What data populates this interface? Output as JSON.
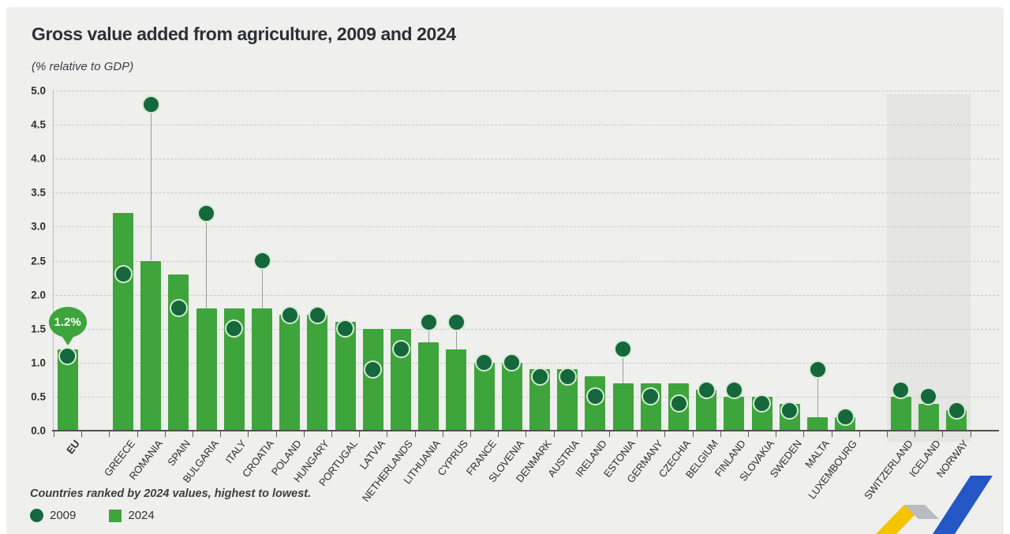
{
  "header": {
    "title": "Gross value added from agriculture, 2009 and 2024",
    "subtitle": "(% relative to GDP)"
  },
  "chart_data": {
    "type": "bar",
    "title": "Gross value added from agriculture, 2009 and 2024",
    "subtitle": "(% relative to GDP)",
    "ylim": [
      0,
      5.0
    ],
    "ytick_step": 0.5,
    "grid": "dashed-horizontal",
    "categories": [
      "EU",
      "GREECE",
      "ROMANIA",
      "SPAIN",
      "BULGARIA",
      "ITALY",
      "CROATIA",
      "POLAND",
      "HUNGARY",
      "PORTUGAL",
      "LATVIA",
      "NETHERLANDS",
      "LITHUANIA",
      "CYPRUS",
      "FRANCE",
      "SLOVENIA",
      "DENMARK",
      "AUSTRIA",
      "IRELAND",
      "ESTONIA",
      "GERMANY",
      "CZECHIA",
      "BELGIUM",
      "FINLAND",
      "SLOVAKIA",
      "SWEDEN",
      "MALTA",
      "LUXEMBOURG",
      "SWITZERLAND",
      "ICELAND",
      "NORWAY"
    ],
    "series": [
      {
        "name": "2009",
        "marker": "dot",
        "values": [
          1.1,
          2.3,
          4.8,
          1.8,
          3.2,
          1.5,
          2.5,
          1.7,
          1.7,
          1.5,
          0.9,
          1.2,
          1.6,
          1.6,
          1.0,
          1.0,
          0.8,
          0.8,
          0.5,
          1.2,
          0.5,
          0.4,
          0.6,
          0.6,
          0.4,
          0.3,
          0.9,
          0.2,
          0.6,
          0.5,
          0.3
        ]
      },
      {
        "name": "2024",
        "marker": "bar",
        "values": [
          1.2,
          3.2,
          2.5,
          2.3,
          1.8,
          1.8,
          1.8,
          1.7,
          1.7,
          1.6,
          1.5,
          1.5,
          1.3,
          1.2,
          1.0,
          1.0,
          0.9,
          0.9,
          0.8,
          0.7,
          0.7,
          0.7,
          0.6,
          0.5,
          0.5,
          0.4,
          0.2,
          0.2,
          0.5,
          0.4,
          0.3
        ]
      }
    ],
    "annotation": {
      "label": "1.2%",
      "category": "EU"
    },
    "gaps_after": [
      "EU",
      "LUXEMBOURG"
    ],
    "highlight_group": [
      "SWITZERLAND",
      "ICELAND",
      "NORWAY"
    ],
    "bold_categories": [
      "EU"
    ]
  },
  "legend": [
    {
      "label": "2009",
      "marker": "circle"
    },
    {
      "label": "2024",
      "marker": "square"
    }
  ],
  "footnote": "Countries ranked by 2024 values, highest to lowest.",
  "colors": {
    "bar_2024": "#3EA43C",
    "dot_2009": "#15673C",
    "dot_ring": "#D7EAD2",
    "card_bg": "#EFEFED",
    "efta_panel": "#E5E5E3",
    "grid": "#C9C9C7",
    "axis": "#515151",
    "stem": "#979D9D",
    "logo_yellow": "#F5C400",
    "logo_gray": "#B9BCBE",
    "logo_blue": "#2456C6"
  }
}
